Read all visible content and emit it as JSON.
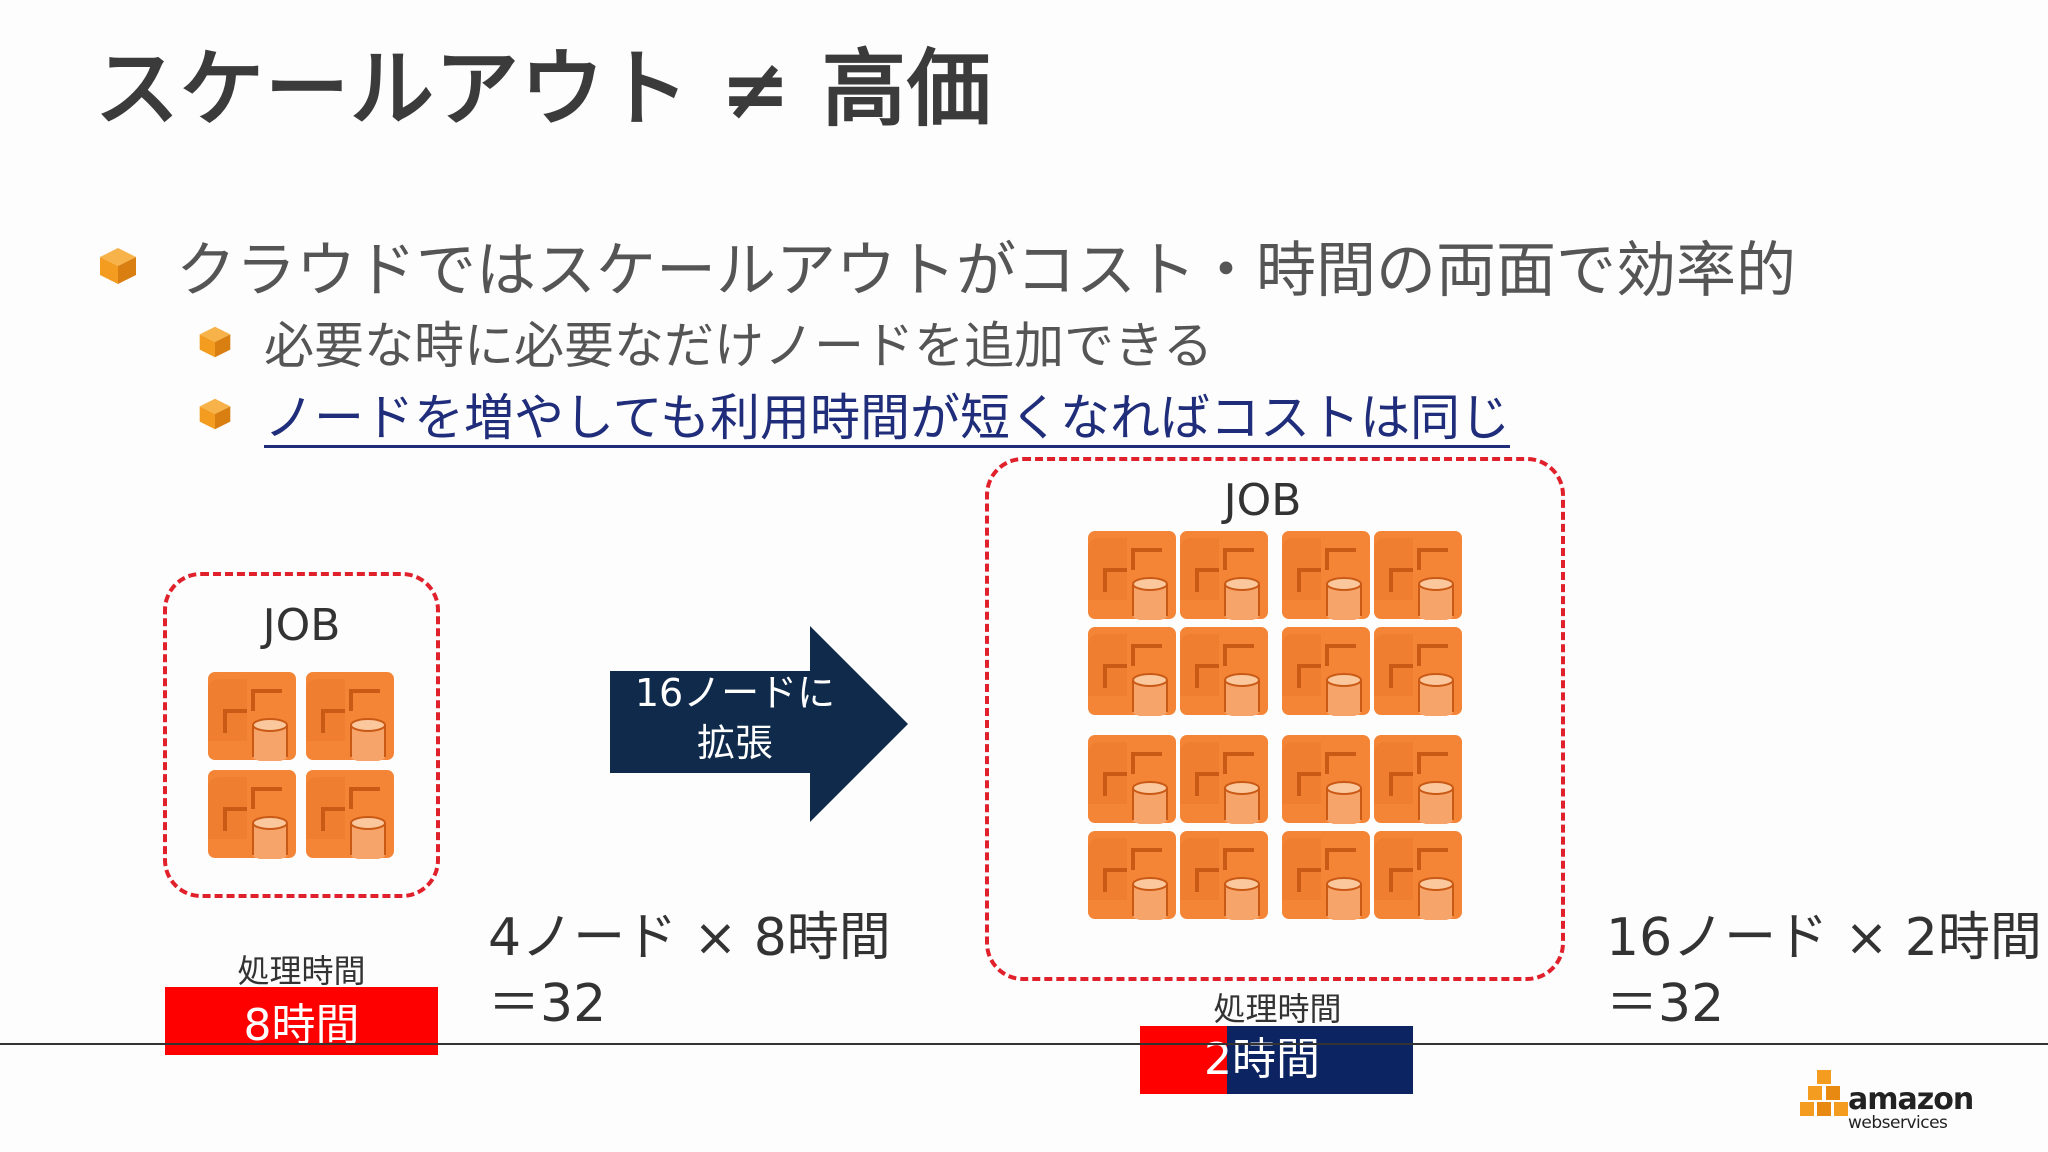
{
  "title": "スケールアウト ≠ 高価",
  "bullets": {
    "main": "クラウドではスケールアウトがコスト・時間の両面で効率的",
    "sub1": "必要な時に必要なだけノードを追加できる",
    "sub2": "ノードを増やしても利用時間が短くなればコストは同じ"
  },
  "left_group": {
    "job_label": "JOB",
    "node_count": 4,
    "caption": "処理時間",
    "bar_label": "8時間",
    "formula_line1": "4ノード × 8時間",
    "formula_line2": "＝32"
  },
  "arrow": {
    "line1": "16ノードに",
    "line2": "拡張"
  },
  "right_group": {
    "job_label": "JOB",
    "node_count": 16,
    "caption": "処理時間",
    "bar_label": "2時間",
    "formula_line1": "16ノード × 2時間",
    "formula_line2": "＝32"
  },
  "logo": {
    "line1": "amazon",
    "line2": "webservices"
  },
  "colors": {
    "accent_orange": "#f58536",
    "bullet_orange": "#f39c1f",
    "red": "#ff0000",
    "navy": "#0f2a4a",
    "bar_navy": "#0d2463",
    "link_blue": "#1f2d7a"
  }
}
